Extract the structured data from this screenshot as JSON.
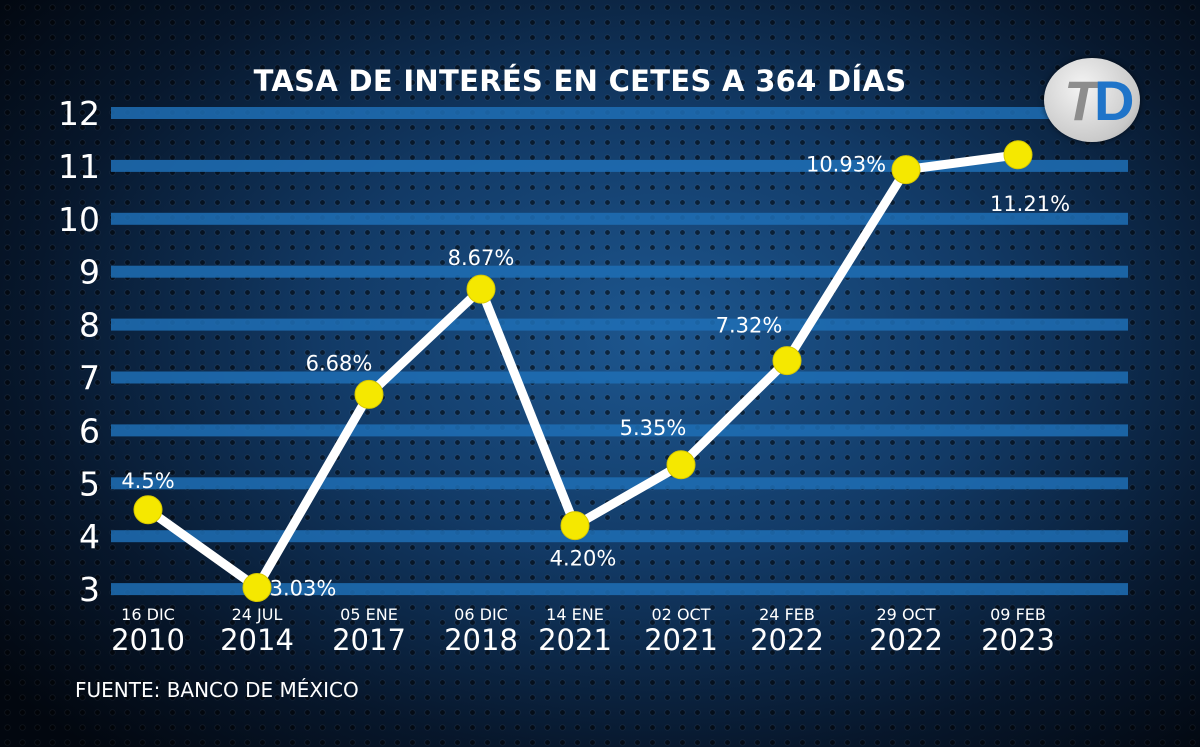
{
  "chart_data": {
    "type": "line",
    "title": "TASA DE INTERÉS EN CETES A 364 DÍAS",
    "categories": [
      {
        "day": "16 DIC",
        "year": "2010"
      },
      {
        "day": "24 JUL",
        "year": "2014"
      },
      {
        "day": "05 ENE",
        "year": "2017"
      },
      {
        "day": "06 DIC",
        "year": "2018"
      },
      {
        "day": "14 ENE",
        "year": "2021"
      },
      {
        "day": "02 OCT",
        "year": "2021"
      },
      {
        "day": "24 FEB",
        "year": "2022"
      },
      {
        "day": "29 OCT",
        "year": "2022"
      },
      {
        "day": "09 FEB",
        "year": "2023"
      }
    ],
    "values": [
      4.5,
      3.03,
      6.68,
      8.67,
      4.2,
      5.35,
      7.32,
      10.93,
      11.21
    ],
    "data_labels": [
      "4.5%",
      "3.03%",
      "6.68%",
      "8.67%",
      "4.20%",
      "5.35%",
      "7.32%",
      "10.93%",
      "11.21%"
    ],
    "y_ticks": [
      "3",
      "4",
      "5",
      "6",
      "7",
      "8",
      "9",
      "10",
      "11",
      "12"
    ],
    "ylim": [
      3,
      12
    ],
    "grid": true,
    "line_color": "#ffffff",
    "marker_color": "#f5e800",
    "grid_color": "#1f6fb5"
  },
  "source": "FUENTE: BANCO DE MÉXICO",
  "logo_text": "TD"
}
